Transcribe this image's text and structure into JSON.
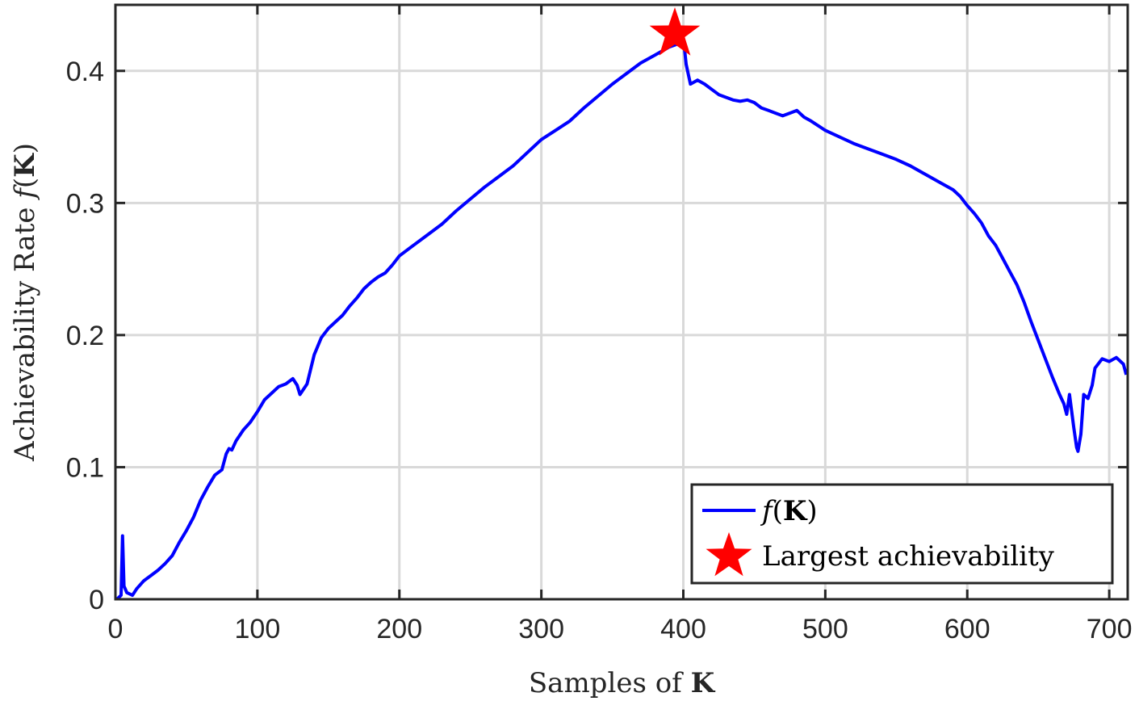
{
  "chart_data": {
    "type": "line",
    "title": "",
    "xlabel": {
      "prefix": "Samples of ",
      "symbol": "K"
    },
    "ylabel": {
      "prefix": "Achievability Rate ",
      "func": "f",
      "open": "(",
      "symbol": "K",
      "close": ")"
    },
    "xlim": [
      0,
      713
    ],
    "ylim": [
      0,
      0.45
    ],
    "xticks": [
      0,
      100,
      200,
      300,
      400,
      500,
      600,
      700
    ],
    "xtick_labels": [
      "0",
      "100",
      "200",
      "300",
      "400",
      "500",
      "600",
      "700"
    ],
    "yticks": [
      0,
      0.1,
      0.2,
      0.3,
      0.4
    ],
    "ytick_labels": [
      "0",
      "0.1",
      "0.2",
      "0.3",
      "0.4"
    ],
    "grid": true,
    "legend_position": "bottom-right",
    "colors": {
      "line": "#0000ff",
      "marker": "#ff0000",
      "grid": "#d9d9d9",
      "axes": "#262626"
    },
    "series": [
      {
        "legend": {
          "func": "f",
          "open": "(",
          "symbol": "K",
          "close": ")"
        },
        "style": "line",
        "x": [
          1,
          4,
          5,
          6,
          8,
          12,
          15,
          20,
          25,
          30,
          35,
          40,
          45,
          50,
          55,
          60,
          65,
          70,
          75,
          78,
          80,
          82,
          85,
          90,
          95,
          100,
          105,
          110,
          115,
          120,
          125,
          128,
          130,
          135,
          140,
          145,
          150,
          155,
          160,
          165,
          170,
          175,
          180,
          185,
          190,
          195,
          200,
          210,
          220,
          230,
          240,
          250,
          260,
          270,
          280,
          290,
          300,
          310,
          320,
          330,
          340,
          350,
          360,
          370,
          380,
          390,
          395,
          400,
          402,
          405,
          410,
          415,
          420,
          425,
          430,
          435,
          440,
          445,
          450,
          455,
          460,
          465,
          470,
          475,
          480,
          485,
          490,
          500,
          510,
          520,
          530,
          540,
          550,
          560,
          570,
          580,
          590,
          595,
          600,
          605,
          610,
          615,
          620,
          625,
          630,
          635,
          640,
          645,
          650,
          655,
          660,
          665,
          668,
          670,
          672,
          675,
          677,
          678,
          680,
          682,
          685,
          688,
          690,
          695,
          700,
          705,
          710,
          712
        ],
        "y": [
          0.0,
          0.003,
          0.048,
          0.01,
          0.005,
          0.003,
          0.008,
          0.014,
          0.018,
          0.022,
          0.027,
          0.033,
          0.043,
          0.052,
          0.062,
          0.075,
          0.085,
          0.094,
          0.098,
          0.11,
          0.114,
          0.113,
          0.12,
          0.128,
          0.134,
          0.142,
          0.151,
          0.156,
          0.161,
          0.163,
          0.167,
          0.162,
          0.155,
          0.163,
          0.185,
          0.198,
          0.205,
          0.21,
          0.215,
          0.222,
          0.228,
          0.235,
          0.24,
          0.244,
          0.247,
          0.253,
          0.26,
          0.268,
          0.276,
          0.284,
          0.294,
          0.303,
          0.312,
          0.32,
          0.328,
          0.338,
          0.348,
          0.355,
          0.362,
          0.372,
          0.381,
          0.39,
          0.398,
          0.406,
          0.412,
          0.418,
          0.42,
          0.425,
          0.405,
          0.39,
          0.393,
          0.39,
          0.386,
          0.382,
          0.38,
          0.378,
          0.377,
          0.378,
          0.376,
          0.372,
          0.37,
          0.368,
          0.366,
          0.368,
          0.37,
          0.365,
          0.362,
          0.355,
          0.35,
          0.345,
          0.341,
          0.337,
          0.333,
          0.328,
          0.322,
          0.316,
          0.31,
          0.305,
          0.298,
          0.292,
          0.285,
          0.275,
          0.268,
          0.258,
          0.248,
          0.238,
          0.225,
          0.21,
          0.196,
          0.182,
          0.168,
          0.155,
          0.148,
          0.14,
          0.155,
          0.13,
          0.115,
          0.112,
          0.125,
          0.155,
          0.152,
          0.162,
          0.175,
          0.182,
          0.18,
          0.183,
          0.178,
          0.17
        ]
      },
      {
        "legend": {
          "text": "Largest achievability"
        },
        "style": "marker",
        "marker": "star",
        "x": [
          394
        ],
        "y": [
          0.428
        ]
      }
    ]
  }
}
